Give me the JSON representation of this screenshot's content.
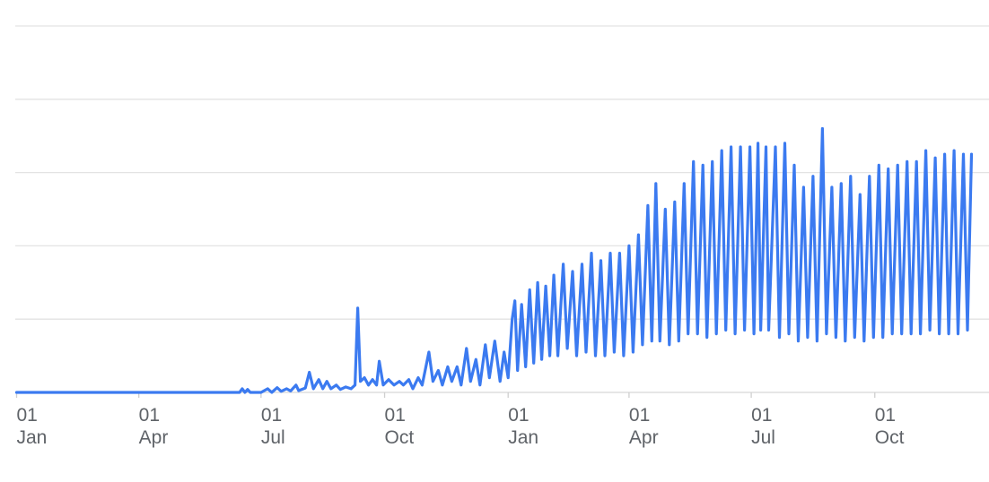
{
  "chart_data": {
    "type": "line",
    "title": "",
    "xlabel": "",
    "ylabel": "",
    "grid": true,
    "legend": "none",
    "y_tick_labels": "none",
    "ylim": [
      0,
      100
    ],
    "xlim": [
      "2019-12-31",
      "2021-12-15"
    ],
    "x_ticks": [
      {
        "date": "2020-01-01",
        "day": "01",
        "month": "Jan"
      },
      {
        "date": "2020-04-01",
        "day": "01",
        "month": "Apr"
      },
      {
        "date": "2020-07-01",
        "day": "01",
        "month": "Jul"
      },
      {
        "date": "2020-10-01",
        "day": "01",
        "month": "Oct"
      },
      {
        "date": "2021-01-01",
        "day": "01",
        "month": "Jan"
      },
      {
        "date": "2021-04-01",
        "day": "01",
        "month": "Apr"
      },
      {
        "date": "2021-07-01",
        "day": "01",
        "month": "Jul"
      },
      {
        "date": "2021-10-01",
        "day": "01",
        "month": "Oct"
      }
    ],
    "series": [
      {
        "color": "#3b7af0",
        "points": [
          [
            "2020-01-01",
            0
          ],
          [
            "2020-06-15",
            0
          ],
          [
            "2020-06-17",
            1
          ],
          [
            "2020-06-19",
            0
          ],
          [
            "2020-06-21",
            0.8
          ],
          [
            "2020-06-23",
            0
          ],
          [
            "2020-07-01",
            0
          ],
          [
            "2020-07-06",
            1
          ],
          [
            "2020-07-09",
            0
          ],
          [
            "2020-07-13",
            1.3
          ],
          [
            "2020-07-16",
            0.3
          ],
          [
            "2020-07-20",
            1
          ],
          [
            "2020-07-23",
            0.4
          ],
          [
            "2020-07-27",
            2
          ],
          [
            "2020-07-29",
            0.5
          ],
          [
            "2020-08-03",
            1.2
          ],
          [
            "2020-08-06",
            5.5
          ],
          [
            "2020-08-09",
            1
          ],
          [
            "2020-08-13",
            3.5
          ],
          [
            "2020-08-16",
            1
          ],
          [
            "2020-08-19",
            3
          ],
          [
            "2020-08-22",
            1
          ],
          [
            "2020-08-26",
            2
          ],
          [
            "2020-08-29",
            0.8
          ],
          [
            "2020-09-02",
            1.5
          ],
          [
            "2020-09-06",
            1
          ],
          [
            "2020-09-09",
            2
          ],
          [
            "2020-09-11",
            23
          ],
          [
            "2020-09-13",
            3
          ],
          [
            "2020-09-16",
            4
          ],
          [
            "2020-09-19",
            2
          ],
          [
            "2020-09-22",
            3.5
          ],
          [
            "2020-09-25",
            2
          ],
          [
            "2020-09-27",
            8.5
          ],
          [
            "2020-09-30",
            2
          ],
          [
            "2020-10-04",
            3.5
          ],
          [
            "2020-10-08",
            2
          ],
          [
            "2020-10-12",
            3
          ],
          [
            "2020-10-15",
            2
          ],
          [
            "2020-10-19",
            3.5
          ],
          [
            "2020-10-22",
            1
          ],
          [
            "2020-10-26",
            4
          ],
          [
            "2020-10-29",
            2
          ],
          [
            "2020-11-03",
            11
          ],
          [
            "2020-11-06",
            3
          ],
          [
            "2020-11-10",
            6
          ],
          [
            "2020-11-13",
            2
          ],
          [
            "2020-11-17",
            7
          ],
          [
            "2020-11-20",
            3
          ],
          [
            "2020-11-24",
            7
          ],
          [
            "2020-11-27",
            2
          ],
          [
            "2020-12-01",
            12
          ],
          [
            "2020-12-04",
            3
          ],
          [
            "2020-12-08",
            9
          ],
          [
            "2020-12-11",
            2
          ],
          [
            "2020-12-15",
            13
          ],
          [
            "2020-12-18",
            4
          ],
          [
            "2020-12-22",
            14
          ],
          [
            "2020-12-26",
            3
          ],
          [
            "2020-12-29",
            11
          ],
          [
            "2021-01-01",
            4
          ],
          [
            "2021-01-04",
            20
          ],
          [
            "2021-01-06",
            25
          ],
          [
            "2021-01-08",
            6
          ],
          [
            "2021-01-11",
            24
          ],
          [
            "2021-01-14",
            7
          ],
          [
            "2021-01-17",
            28
          ],
          [
            "2021-01-20",
            8
          ],
          [
            "2021-01-23",
            30
          ],
          [
            "2021-01-26",
            9
          ],
          [
            "2021-01-29",
            29
          ],
          [
            "2021-02-01",
            10
          ],
          [
            "2021-02-04",
            32
          ],
          [
            "2021-02-07",
            10
          ],
          [
            "2021-02-11",
            35
          ],
          [
            "2021-02-14",
            12
          ],
          [
            "2021-02-18",
            33
          ],
          [
            "2021-02-21",
            10
          ],
          [
            "2021-02-25",
            35
          ],
          [
            "2021-02-28",
            11
          ],
          [
            "2021-03-04",
            38
          ],
          [
            "2021-03-07",
            10
          ],
          [
            "2021-03-11",
            36
          ],
          [
            "2021-03-14",
            10
          ],
          [
            "2021-03-18",
            38
          ],
          [
            "2021-03-21",
            11
          ],
          [
            "2021-03-25",
            38
          ],
          [
            "2021-03-28",
            10
          ],
          [
            "2021-04-01",
            40
          ],
          [
            "2021-04-04",
            11
          ],
          [
            "2021-04-08",
            43
          ],
          [
            "2021-04-11",
            13
          ],
          [
            "2021-04-15",
            51
          ],
          [
            "2021-04-18",
            14
          ],
          [
            "2021-04-21",
            57
          ],
          [
            "2021-04-24",
            14
          ],
          [
            "2021-04-28",
            50
          ],
          [
            "2021-05-01",
            13
          ],
          [
            "2021-05-05",
            52
          ],
          [
            "2021-05-08",
            14
          ],
          [
            "2021-05-12",
            57
          ],
          [
            "2021-05-15",
            16
          ],
          [
            "2021-05-19",
            63
          ],
          [
            "2021-05-22",
            16
          ],
          [
            "2021-05-26",
            62
          ],
          [
            "2021-05-29",
            15
          ],
          [
            "2021-06-02",
            63
          ],
          [
            "2021-06-05",
            16
          ],
          [
            "2021-06-09",
            66
          ],
          [
            "2021-06-12",
            17
          ],
          [
            "2021-06-16",
            67
          ],
          [
            "2021-06-19",
            16
          ],
          [
            "2021-06-23",
            67
          ],
          [
            "2021-06-26",
            17
          ],
          [
            "2021-06-30",
            67
          ],
          [
            "2021-07-03",
            16
          ],
          [
            "2021-07-06",
            68
          ],
          [
            "2021-07-08",
            17
          ],
          [
            "2021-07-12",
            67
          ],
          [
            "2021-07-14",
            17
          ],
          [
            "2021-07-19",
            67
          ],
          [
            "2021-07-22",
            15
          ],
          [
            "2021-07-26",
            68
          ],
          [
            "2021-07-29",
            16
          ],
          [
            "2021-08-02",
            62
          ],
          [
            "2021-08-05",
            14
          ],
          [
            "2021-08-09",
            56
          ],
          [
            "2021-08-12",
            15
          ],
          [
            "2021-08-16",
            59
          ],
          [
            "2021-08-19",
            14
          ],
          [
            "2021-08-23",
            72
          ],
          [
            "2021-08-26",
            16
          ],
          [
            "2021-08-30",
            56
          ],
          [
            "2021-09-02",
            15
          ],
          [
            "2021-09-06",
            57
          ],
          [
            "2021-09-09",
            14
          ],
          [
            "2021-09-13",
            59
          ],
          [
            "2021-09-16",
            15
          ],
          [
            "2021-09-20",
            54
          ],
          [
            "2021-09-23",
            14
          ],
          [
            "2021-09-27",
            59
          ],
          [
            "2021-09-30",
            15
          ],
          [
            "2021-10-04",
            62
          ],
          [
            "2021-10-07",
            15
          ],
          [
            "2021-10-11",
            61
          ],
          [
            "2021-10-14",
            16
          ],
          [
            "2021-10-18",
            62
          ],
          [
            "2021-10-21",
            16
          ],
          [
            "2021-10-25",
            63
          ],
          [
            "2021-10-28",
            16
          ],
          [
            "2021-11-01",
            63
          ],
          [
            "2021-11-04",
            16
          ],
          [
            "2021-11-08",
            66
          ],
          [
            "2021-11-11",
            17
          ],
          [
            "2021-11-15",
            64
          ],
          [
            "2021-11-18",
            16
          ],
          [
            "2021-11-22",
            65
          ],
          [
            "2021-11-25",
            16
          ],
          [
            "2021-11-29",
            66
          ],
          [
            "2021-12-02",
            16
          ],
          [
            "2021-12-06",
            65
          ],
          [
            "2021-12-09",
            17
          ],
          [
            "2021-12-12",
            65
          ]
        ]
      }
    ]
  }
}
